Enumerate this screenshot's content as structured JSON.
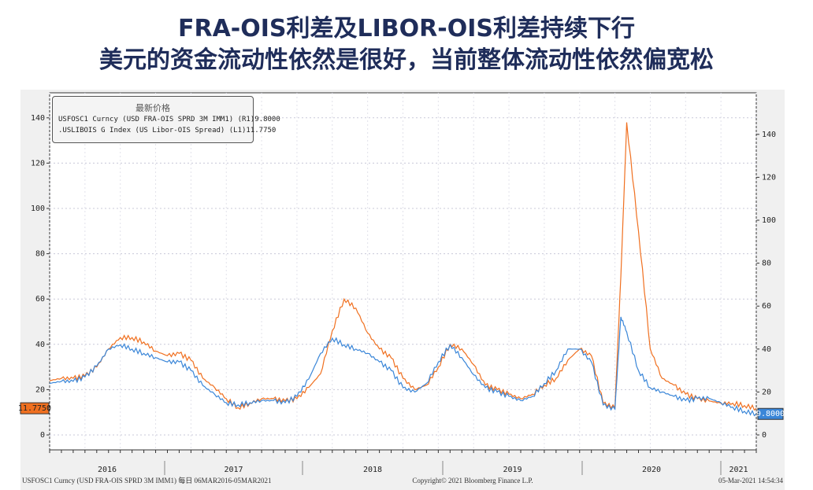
{
  "header": {
    "line1": "FRA-OIS利差及LIBOR-OIS利差持续下行",
    "line2": "美元的资金流动性依然是很好，当前整体流动性依然偏宽松"
  },
  "legend": {
    "title": "最新价格",
    "items": [
      {
        "label": "USFOSC1 Curncy (USD FRA-OIS SPRD 3M IMM1) (R1)",
        "value": "9.8000",
        "color": "#3a86d8"
      },
      {
        "label": ".USLIBOIS G Index (US Libor-OIS Spread) (L1)",
        "value": "11.7750",
        "color": "#f07020"
      }
    ]
  },
  "footer": {
    "left": "USFOSC1 Curncy (USD FRA-OIS SPRD 3M IMM1)  每日 06MAR2016-05MAR2021",
    "center": "Copyright© 2021 Bloomberg Finance L.P.",
    "right": "05-Mar-2021 14:54:34"
  },
  "chart_data": {
    "type": "line",
    "title": "FRA-OIS利差及LIBOR-OIS利差",
    "x_range": [
      "2016-03",
      "2021-03"
    ],
    "x_tick_labels": [
      "2016",
      "2017",
      "2018",
      "2019",
      "2020",
      "2021"
    ],
    "left_axis": {
      "ylim": [
        -5,
        150
      ],
      "ticks": [
        0,
        20,
        40,
        60,
        80,
        100,
        120,
        140
      ]
    },
    "right_axis": {
      "ylim": [
        -5,
        155
      ],
      "ticks": [
        0,
        20,
        40,
        60,
        80,
        100,
        120,
        140
      ]
    },
    "last_value_labels": {
      "left": "11.7750",
      "right": "9.8000"
    },
    "series": [
      {
        "name": ".USLIBOIS G Index (US Libor-OIS Spread)",
        "axis": "left",
        "color": "#f07020",
        "x": [
          "2016-03",
          "2016-04",
          "2016-05",
          "2016-06",
          "2016-07",
          "2016-08",
          "2016-09",
          "2016-10",
          "2016-11",
          "2016-12",
          "2017-01",
          "2017-02",
          "2017-03",
          "2017-04",
          "2017-05",
          "2017-06",
          "2017-07",
          "2017-08",
          "2017-09",
          "2017-10",
          "2017-11",
          "2017-12",
          "2018-01",
          "2018-02",
          "2018-03",
          "2018-04",
          "2018-05",
          "2018-06",
          "2018-07",
          "2018-08",
          "2018-09",
          "2018-10",
          "2018-11",
          "2018-12",
          "2019-01",
          "2019-02",
          "2019-03",
          "2019-04",
          "2019-05",
          "2019-06",
          "2019-07",
          "2019-08",
          "2019-09",
          "2019-10",
          "2019-11",
          "2019-12",
          "2020-01",
          "2020-02",
          "2020-03",
          "2020-03b",
          "2020-04",
          "2020-05",
          "2020-06",
          "2020-07",
          "2020-08",
          "2020-09",
          "2020-10",
          "2020-11",
          "2020-12",
          "2021-01",
          "2021-02",
          "2021-03"
        ],
        "values": [
          24,
          25,
          25,
          26,
          30,
          38,
          43,
          43,
          41,
          37,
          35,
          36,
          33,
          25,
          21,
          16,
          12,
          14,
          16,
          16,
          15,
          16,
          21,
          27,
          46,
          60,
          56,
          45,
          38,
          34,
          25,
          20,
          22,
          30,
          40,
          38,
          31,
          22,
          20,
          18,
          16,
          18,
          22,
          25,
          33,
          38,
          35,
          14,
          12,
          70,
          138,
          90,
          38,
          25,
          22,
          18,
          16,
          15,
          14,
          14,
          13,
          11.775
        ]
      },
      {
        "name": "USFOSC1 Curncy (USD FRA-OIS SPRD 3M IMM1)",
        "axis": "right",
        "color": "#3a86d8",
        "x": [
          "2016-03",
          "2016-04",
          "2016-05",
          "2016-06",
          "2016-07",
          "2016-08",
          "2016-09",
          "2016-10",
          "2016-11",
          "2016-12",
          "2017-01",
          "2017-02",
          "2017-03",
          "2017-04",
          "2017-05",
          "2017-06",
          "2017-07",
          "2017-08",
          "2017-09",
          "2017-10",
          "2017-11",
          "2017-12",
          "2018-01",
          "2018-02",
          "2018-03",
          "2018-04",
          "2018-05",
          "2018-06",
          "2018-07",
          "2018-08",
          "2018-09",
          "2018-10",
          "2018-11",
          "2018-12",
          "2019-01",
          "2019-02",
          "2019-03",
          "2019-04",
          "2019-05",
          "2019-06",
          "2019-07",
          "2019-08",
          "2019-09",
          "2019-10",
          "2019-11",
          "2019-12",
          "2020-01",
          "2020-02",
          "2020-03",
          "2020-03b",
          "2020-04",
          "2020-05",
          "2020-06",
          "2020-07",
          "2020-08",
          "2020-09",
          "2020-10",
          "2020-11",
          "2020-12",
          "2021-01",
          "2021-02",
          "2021-03"
        ],
        "values": [
          24,
          25,
          25,
          27,
          32,
          40,
          42,
          40,
          38,
          36,
          34,
          34,
          30,
          23,
          19,
          15,
          14,
          15,
          16,
          16,
          15,
          18,
          26,
          38,
          45,
          42,
          40,
          38,
          34,
          30,
          22,
          20,
          24,
          34,
          42,
          36,
          28,
          22,
          20,
          18,
          16,
          18,
          24,
          30,
          40,
          40,
          34,
          14,
          12,
          55,
          48,
          30,
          22,
          20,
          18,
          16,
          17,
          17,
          15,
          13,
          11,
          9.8
        ]
      }
    ]
  }
}
